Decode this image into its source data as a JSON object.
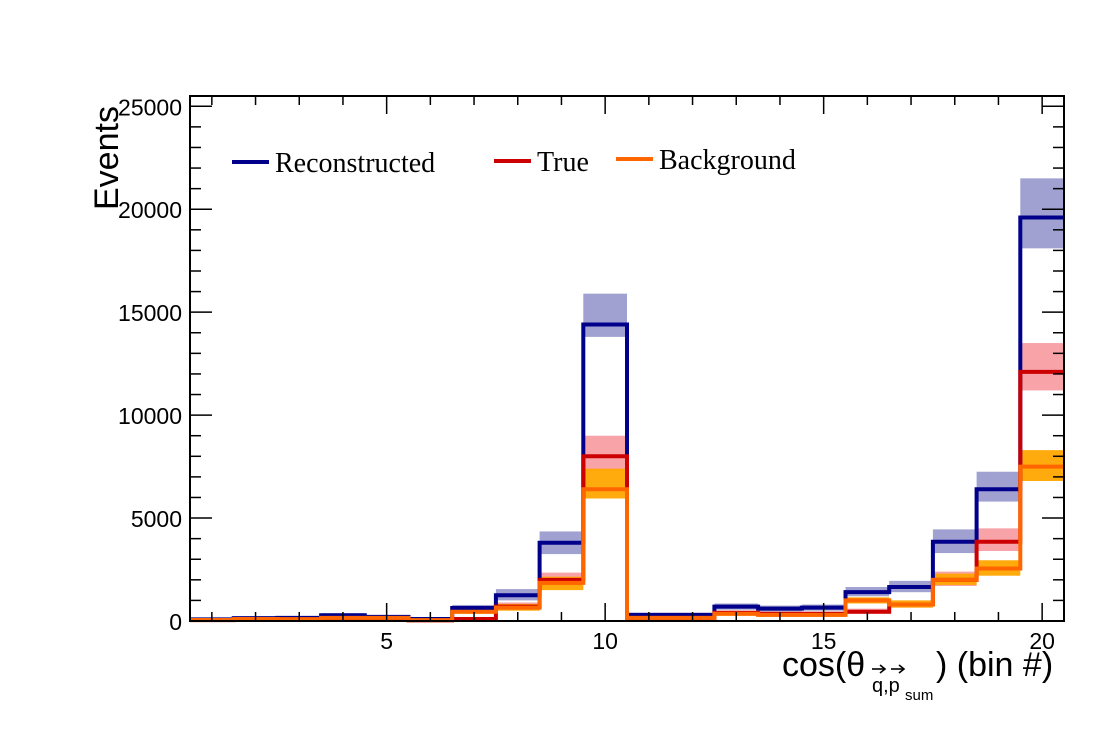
{
  "chart_data": {
    "type": "histogram-step",
    "xlabel": "cos(θ",
    "xlabel_sub": "q,p",
    "xlabel_subsub": "sum",
    "xlabel_suffix": ") (bin #)",
    "ylabel": "Events",
    "xlim": [
      0.5,
      20.5
    ],
    "ylim": [
      0,
      25500
    ],
    "x_ticks": [
      5,
      10,
      15,
      20
    ],
    "y_ticks": [
      0,
      5000,
      10000,
      15000,
      20000,
      25000
    ],
    "y_tick_labels": [
      "0",
      "5000",
      "10000",
      "15000",
      "20000",
      "25000"
    ],
    "bins": [
      1,
      2,
      3,
      4,
      5,
      6,
      7,
      8,
      9,
      10,
      11,
      12,
      13,
      14,
      15,
      16,
      17,
      18,
      19,
      20
    ],
    "legend_placement": "top-left",
    "series": [
      {
        "name": "Reconstructed",
        "color": "#00008b",
        "band_color": "#9b9ccf",
        "values": [
          80,
          140,
          150,
          280,
          200,
          100,
          630,
          1250,
          3800,
          14400,
          300,
          300,
          700,
          600,
          650,
          1400,
          1650,
          3850,
          6400,
          19600
        ],
        "band_low": [
          40,
          90,
          100,
          200,
          140,
          60,
          480,
          1000,
          3250,
          13800,
          200,
          200,
          550,
          470,
          500,
          1200,
          1400,
          3300,
          5800,
          18100
        ],
        "band_high": [
          140,
          210,
          210,
          380,
          280,
          150,
          780,
          1550,
          4350,
          15900,
          400,
          400,
          850,
          750,
          800,
          1650,
          1950,
          4450,
          7250,
          21500
        ]
      },
      {
        "name": "True",
        "color": "#cc0000",
        "band_color": "#f89ea3",
        "values": [
          40,
          90,
          80,
          120,
          120,
          30,
          100,
          700,
          2000,
          8000,
          150,
          150,
          400,
          350,
          350,
          450,
          800,
          2000,
          3850,
          12100
        ],
        "band_low": [
          20,
          60,
          50,
          80,
          80,
          10,
          50,
          550,
          1700,
          7300,
          100,
          100,
          300,
          250,
          250,
          350,
          650,
          1700,
          3400,
          11200
        ],
        "band_high": [
          80,
          140,
          120,
          180,
          180,
          60,
          180,
          900,
          2350,
          9000,
          220,
          220,
          500,
          450,
          450,
          600,
          1000,
          2400,
          4500,
          13500
        ]
      },
      {
        "name": "Background",
        "color": "#ff6600",
        "band_color": "#ffa500",
        "values": [
          50,
          100,
          90,
          150,
          150,
          40,
          450,
          650,
          1850,
          6400,
          150,
          150,
          350,
          300,
          300,
          1000,
          800,
          2000,
          2550,
          7500
        ],
        "band_low": [
          20,
          60,
          50,
          100,
          100,
          20,
          350,
          500,
          1500,
          5950,
          100,
          100,
          250,
          200,
          200,
          850,
          650,
          1750,
          2200,
          6800
        ],
        "band_high": [
          80,
          150,
          130,
          210,
          210,
          80,
          560,
          830,
          2150,
          7400,
          220,
          220,
          450,
          400,
          400,
          1150,
          1000,
          2300,
          2950,
          8300
        ]
      }
    ]
  }
}
